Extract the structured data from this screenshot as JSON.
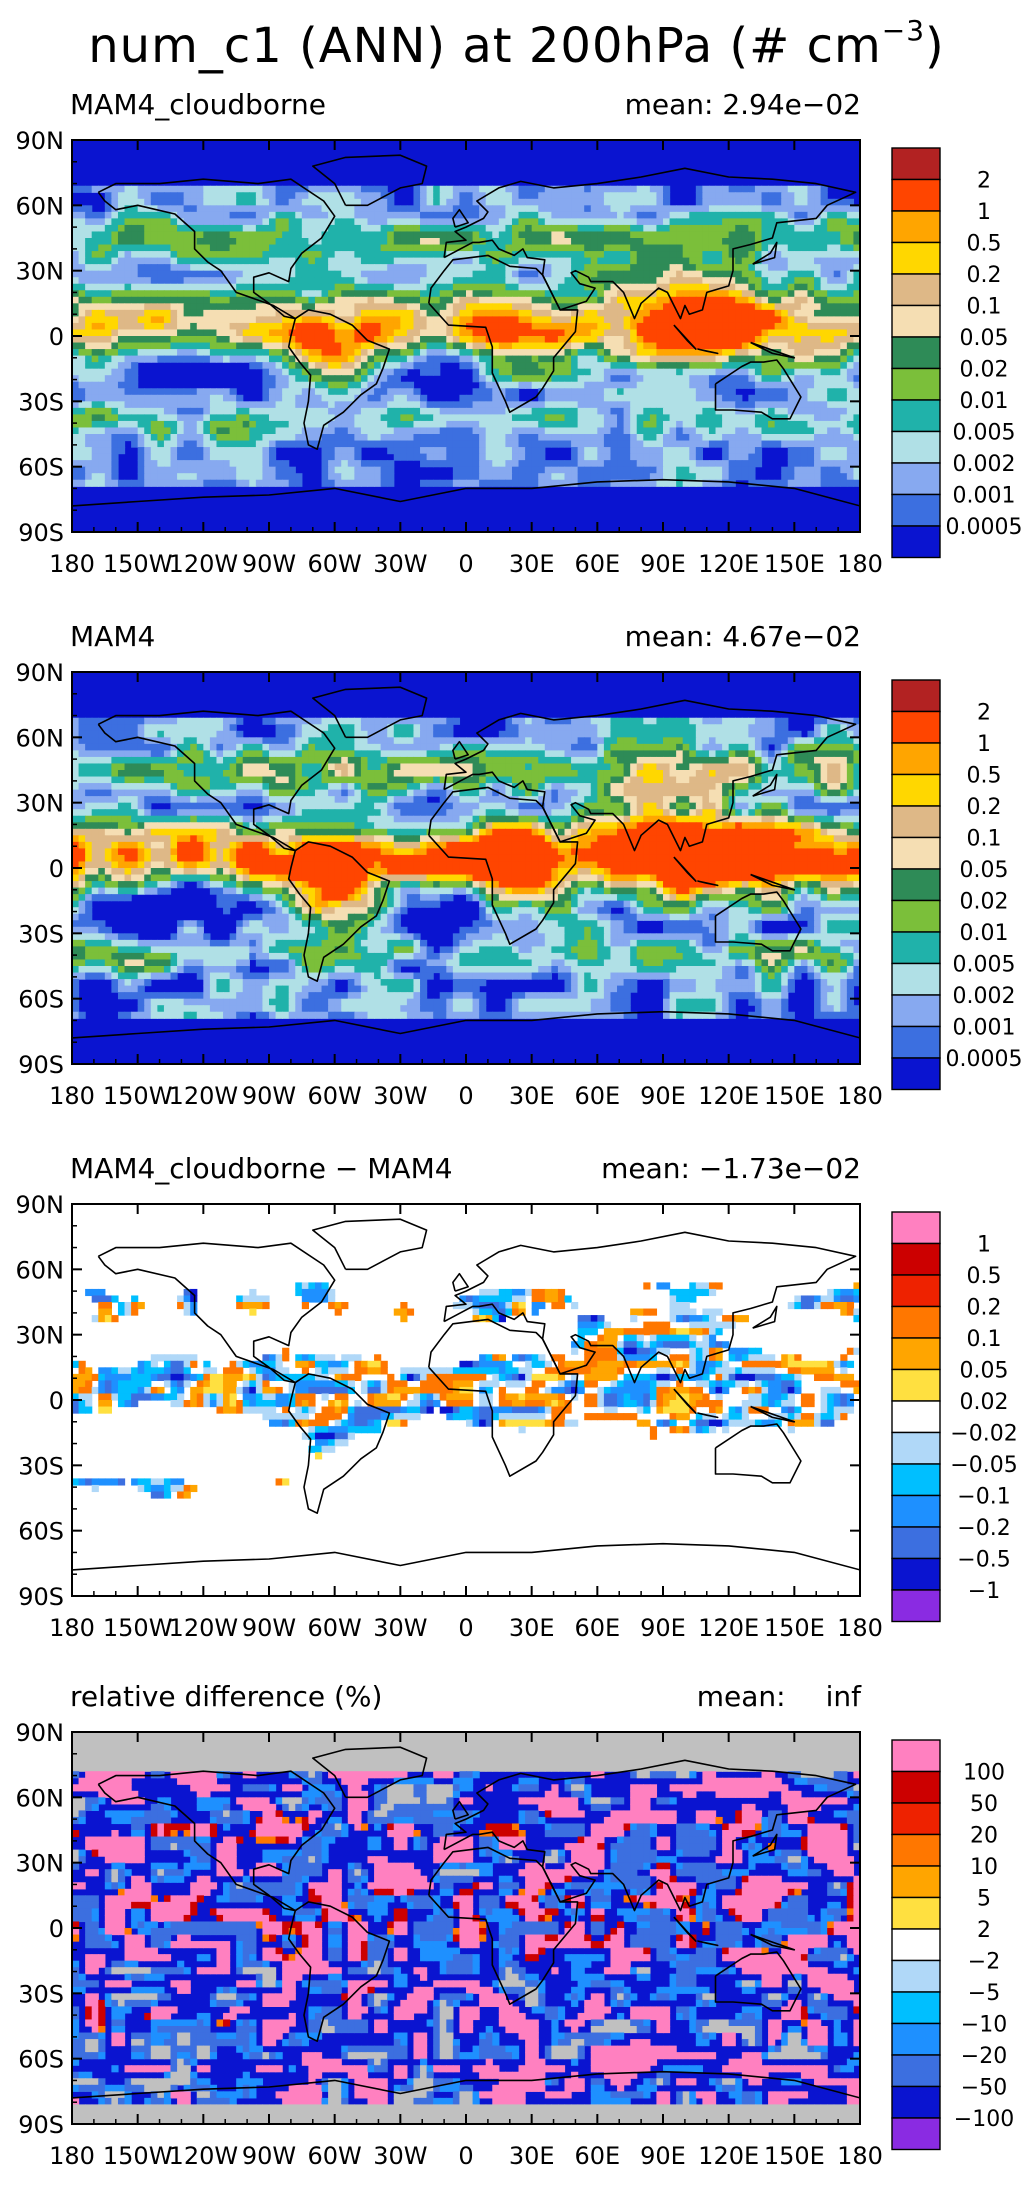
{
  "title": {
    "main": "num_c1 (ANN) at 200hPa (# cm",
    "exponent": "−3",
    "suffix": ")"
  },
  "chart_data": [
    {
      "type": "heatmap",
      "title": "MAM4_cloudborne",
      "mean_label": "mean: 2.94e−02",
      "mean_value": 0.0294,
      "xlim": [
        -180,
        180
      ],
      "ylim": [
        -90,
        90
      ],
      "x_ticks": [
        "180",
        "150W",
        "120W",
        "90W",
        "60W",
        "30W",
        "0",
        "30E",
        "60E",
        "90E",
        "120E",
        "150E",
        "180"
      ],
      "y_ticks": [
        "90N",
        "60N",
        "30N",
        "0",
        "30S",
        "60S",
        "90S"
      ],
      "colorbar_labels": [
        "2",
        "1",
        "0.5",
        "0.2",
        "0.1",
        "0.05",
        "0.02",
        "0.01",
        "0.005",
        "0.002",
        "0.001",
        "0.0005"
      ],
      "colorbar_colors": [
        "#b22222",
        "#ff4500",
        "#ffa500",
        "#ffd700",
        "#deb887",
        "#f5deb3",
        "#2e8b57",
        "#7bbf3a",
        "#20b2aa",
        "#b0e0e6",
        "#87a9f0",
        "#3c6fe0",
        "#0a14d0"
      ],
      "background_color": "#0a14d0",
      "pattern": "positive",
      "intensity": 0.55
    },
    {
      "type": "heatmap",
      "title": "MAM4",
      "mean_label": "mean: 4.67e−02",
      "mean_value": 0.0467,
      "xlim": [
        -180,
        180
      ],
      "ylim": [
        -90,
        90
      ],
      "x_ticks": [
        "180",
        "150W",
        "120W",
        "90W",
        "60W",
        "30W",
        "0",
        "30E",
        "60E",
        "90E",
        "120E",
        "150E",
        "180"
      ],
      "y_ticks": [
        "90N",
        "60N",
        "30N",
        "0",
        "30S",
        "60S",
        "90S"
      ],
      "colorbar_labels": [
        "2",
        "1",
        "0.5",
        "0.2",
        "0.1",
        "0.05",
        "0.02",
        "0.01",
        "0.005",
        "0.002",
        "0.001",
        "0.0005"
      ],
      "colorbar_colors": [
        "#b22222",
        "#ff4500",
        "#ffa500",
        "#ffd700",
        "#deb887",
        "#f5deb3",
        "#2e8b57",
        "#7bbf3a",
        "#20b2aa",
        "#b0e0e6",
        "#87a9f0",
        "#3c6fe0",
        "#0a14d0"
      ],
      "background_color": "#0a14d0",
      "pattern": "positive",
      "intensity": 0.72
    },
    {
      "type": "heatmap",
      "title": "MAM4_cloudborne − MAM4",
      "mean_label": "mean: −1.73e−02",
      "mean_value": -0.0173,
      "xlim": [
        -180,
        180
      ],
      "ylim": [
        -90,
        90
      ],
      "x_ticks": [
        "180",
        "150W",
        "120W",
        "90W",
        "60W",
        "30W",
        "0",
        "30E",
        "60E",
        "90E",
        "120E",
        "150E",
        "180"
      ],
      "y_ticks": [
        "90N",
        "60N",
        "30N",
        "0",
        "30S",
        "60S",
        "90S"
      ],
      "colorbar_labels": [
        "1",
        "0.5",
        "0.2",
        "0.1",
        "0.05",
        "0.02",
        "−0.02",
        "−0.05",
        "−0.1",
        "−0.2",
        "−0.5",
        "−1"
      ],
      "colorbar_colors": [
        "#ff80c0",
        "#cc0000",
        "#ee2200",
        "#ff7700",
        "#ffa500",
        "#ffe040",
        "#ffffff",
        "#b0d8f8",
        "#00bfff",
        "#1e90ff",
        "#3c6fe0",
        "#0a14d0",
        "#8a2be2"
      ],
      "background_color": "#ffffff",
      "pattern": "difference",
      "intensity": 0.5
    },
    {
      "type": "heatmap",
      "title": "relative difference (%)",
      "mean_label": "mean:",
      "mean_value_text": "inf",
      "xlim": [
        -180,
        180
      ],
      "ylim": [
        -90,
        90
      ],
      "x_ticks": [
        "180",
        "150W",
        "120W",
        "90W",
        "60W",
        "30W",
        "0",
        "30E",
        "60E",
        "90E",
        "120E",
        "150E",
        "180"
      ],
      "y_ticks": [
        "90N",
        "60N",
        "30N",
        "0",
        "30S",
        "60S",
        "90S"
      ],
      "colorbar_labels": [
        "100",
        "50",
        "20",
        "10",
        "5",
        "2",
        "−2",
        "−5",
        "−10",
        "−20",
        "−50",
        "−100"
      ],
      "colorbar_colors": [
        "#ff80c0",
        "#cc0000",
        "#ee2200",
        "#ff7700",
        "#ffa500",
        "#ffe040",
        "#ffffff",
        "#b0d8f8",
        "#00bfff",
        "#1e90ff",
        "#3c6fe0",
        "#0a14d0",
        "#8a2be2"
      ],
      "background_color": "#0a14d0",
      "missing_color": "#c0c0c0",
      "pattern": "relative",
      "intensity": 0.6
    }
  ]
}
